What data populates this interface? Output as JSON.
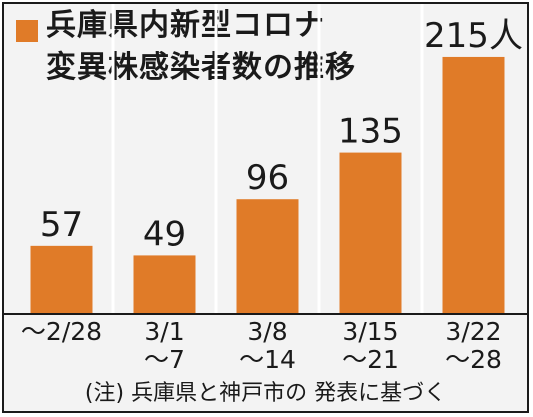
{
  "colors": {
    "bar": "#e07b28",
    "axis": "#1a1a1a",
    "grid": "#ffffff"
  },
  "chart_data": {
    "type": "bar",
    "title_lines": [
      "兵庫県内新型コロナ",
      "変異株感染者数の推移"
    ],
    "categories": [
      [
        "～2/28",
        ""
      ],
      [
        "3/1",
        "～7"
      ],
      [
        "3/8",
        "～14"
      ],
      [
        "3/15",
        "～21"
      ],
      [
        "3/22",
        "～28"
      ]
    ],
    "values": [
      57,
      49,
      96,
      135,
      215
    ],
    "value_labels": [
      "57",
      "49",
      "96",
      "135",
      "215人"
    ],
    "ylim": [
      0,
      230
    ],
    "grid": true,
    "footnote": "(注) 兵庫県と神戸市の 発表に基づく"
  }
}
